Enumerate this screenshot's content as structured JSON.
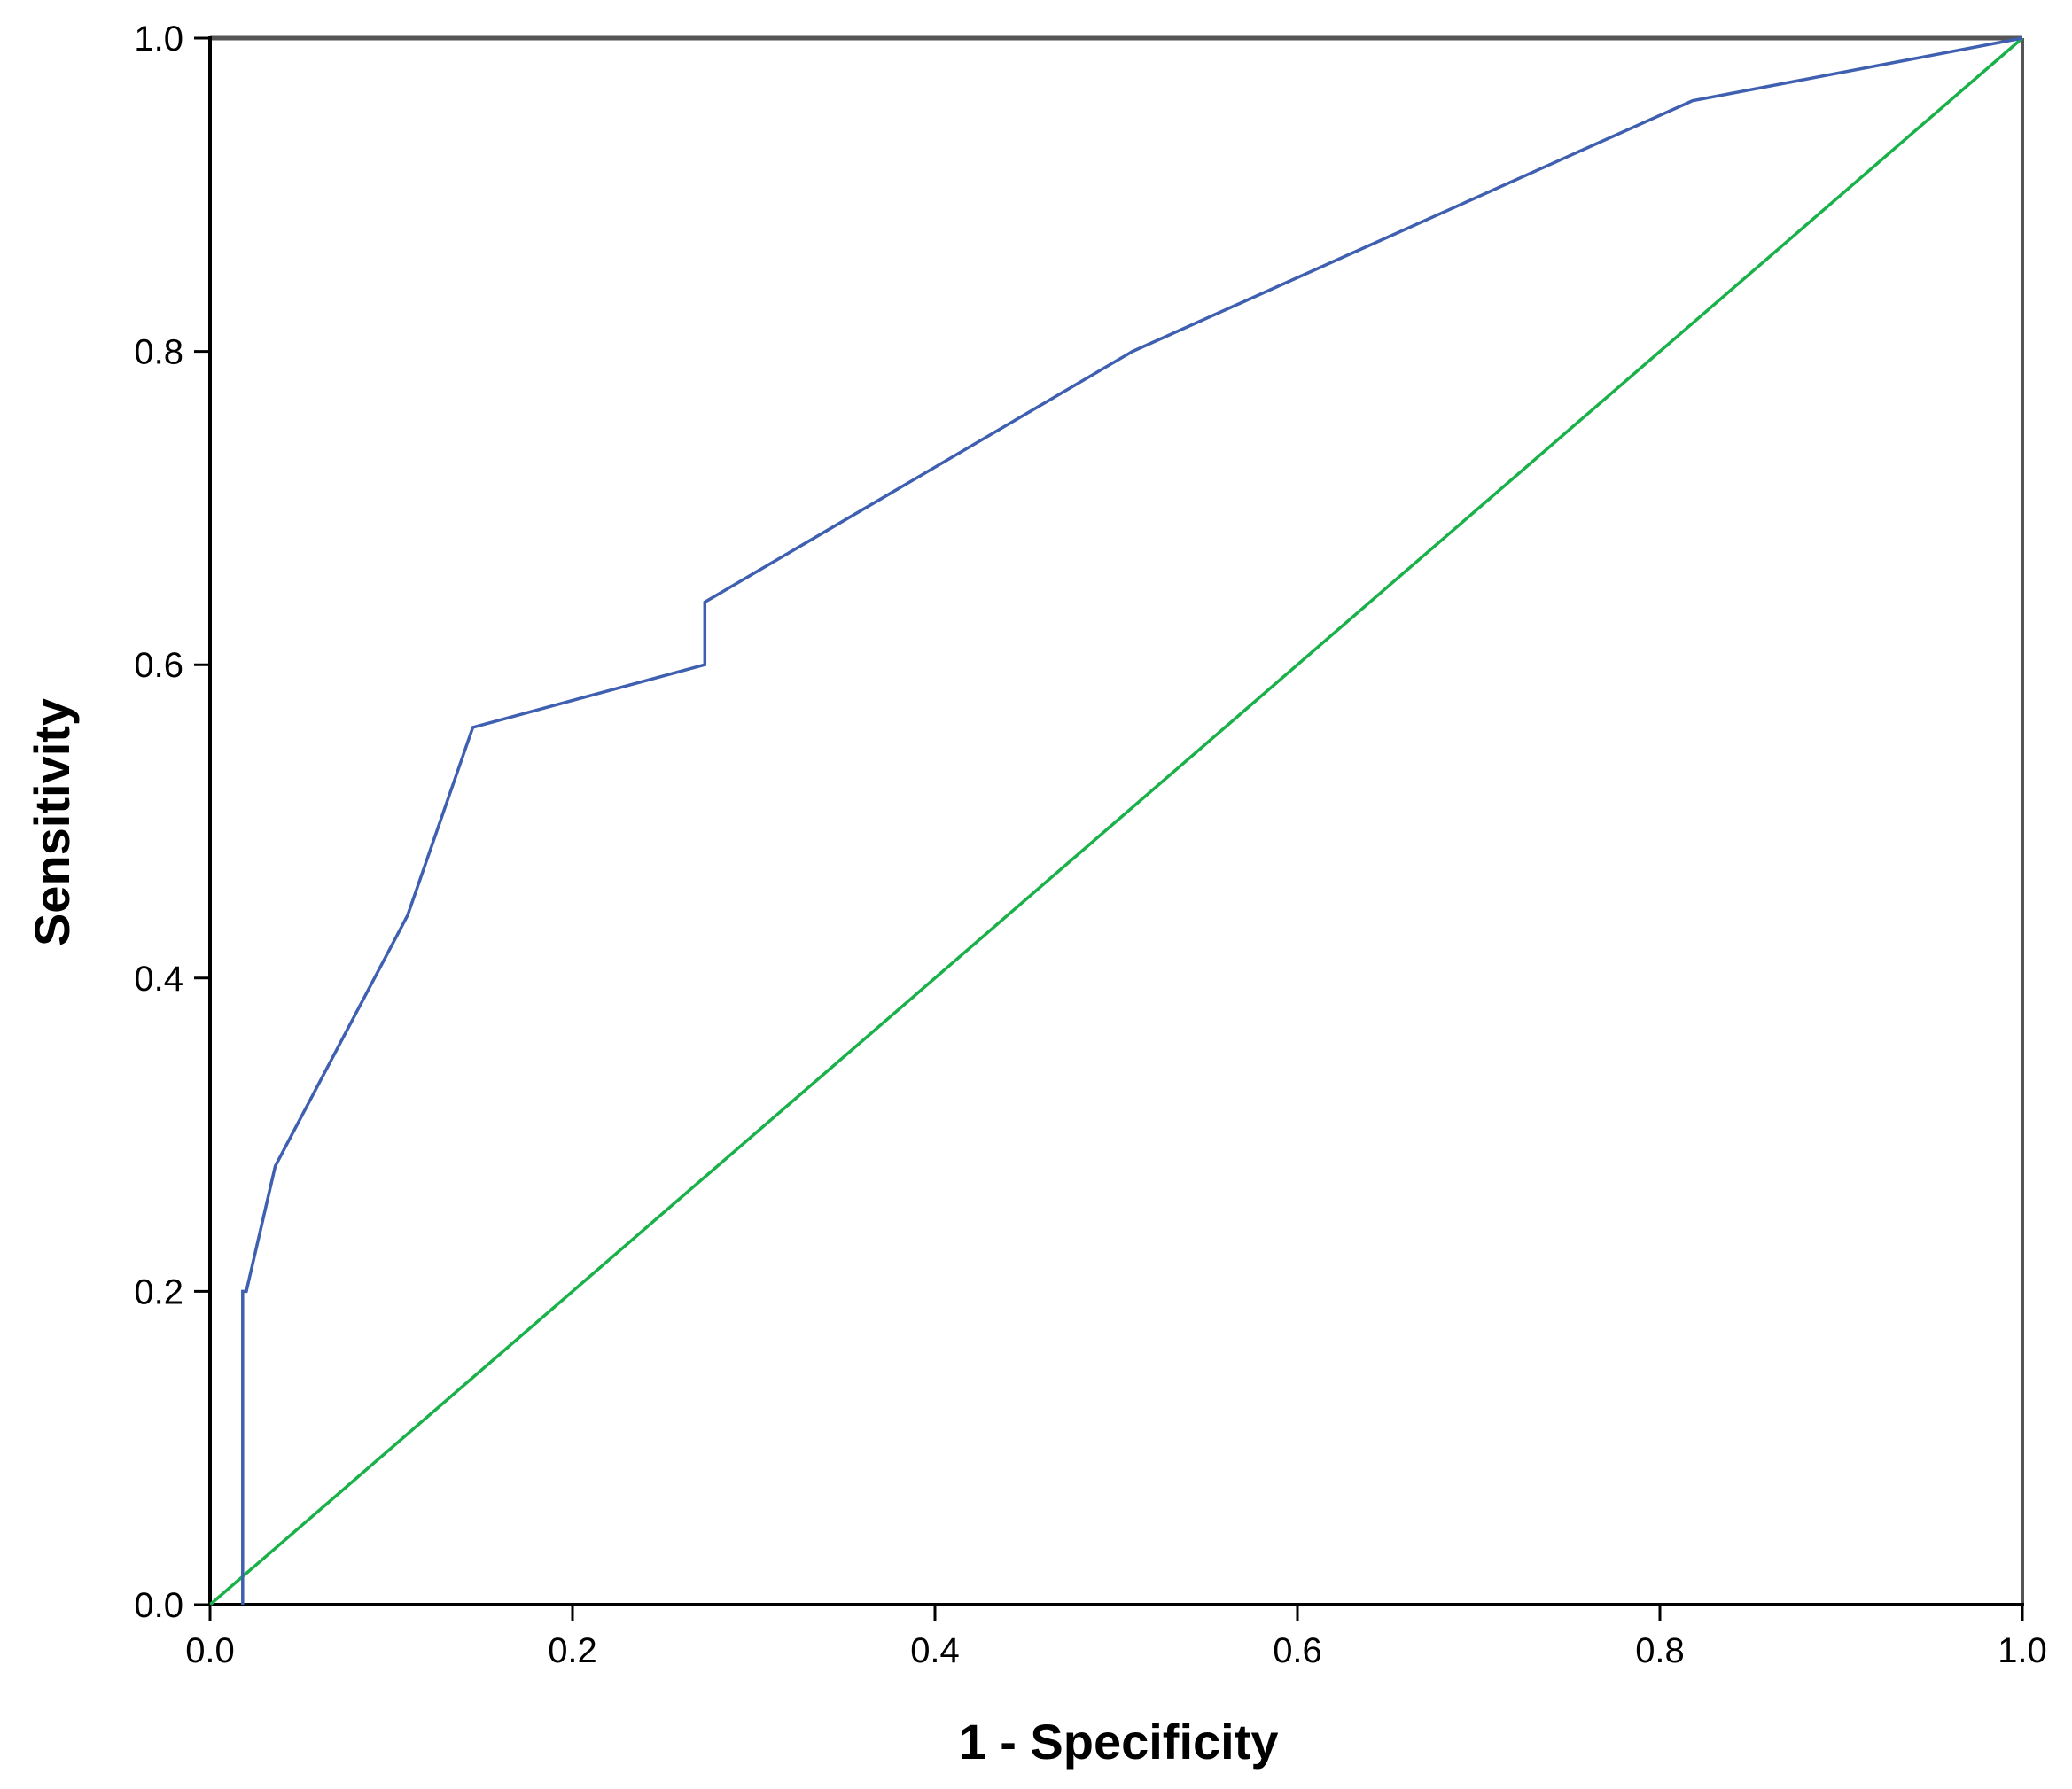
{
  "chart_data": {
    "type": "line",
    "title": "",
    "xlabel": "1 - Specificity",
    "ylabel": "Sensitivity",
    "xlim": [
      0,
      1
    ],
    "ylim": [
      0,
      1
    ],
    "grid": false,
    "x_ticks": [
      "0.0",
      "0.2",
      "0.4",
      "0.6",
      "0.8",
      "1.0"
    ],
    "y_ticks": [
      "0.0",
      "0.2",
      "0.4",
      "0.6",
      "0.8",
      "1.0"
    ],
    "series": [
      {
        "color": "#3f5fb0",
        "x": [
          0.018,
          0.018,
          0.02,
          0.036,
          0.109,
          0.145,
          0.273,
          0.273,
          0.509,
          0.818,
          1.0
        ],
        "y": [
          0.0,
          0.2,
          0.2,
          0.28,
          0.44,
          0.56,
          0.6,
          0.64,
          0.8,
          0.96,
          1.0
        ]
      },
      {
        "color": "#1ab04a",
        "x": [
          0,
          1
        ],
        "y": [
          0,
          1
        ]
      }
    ]
  }
}
